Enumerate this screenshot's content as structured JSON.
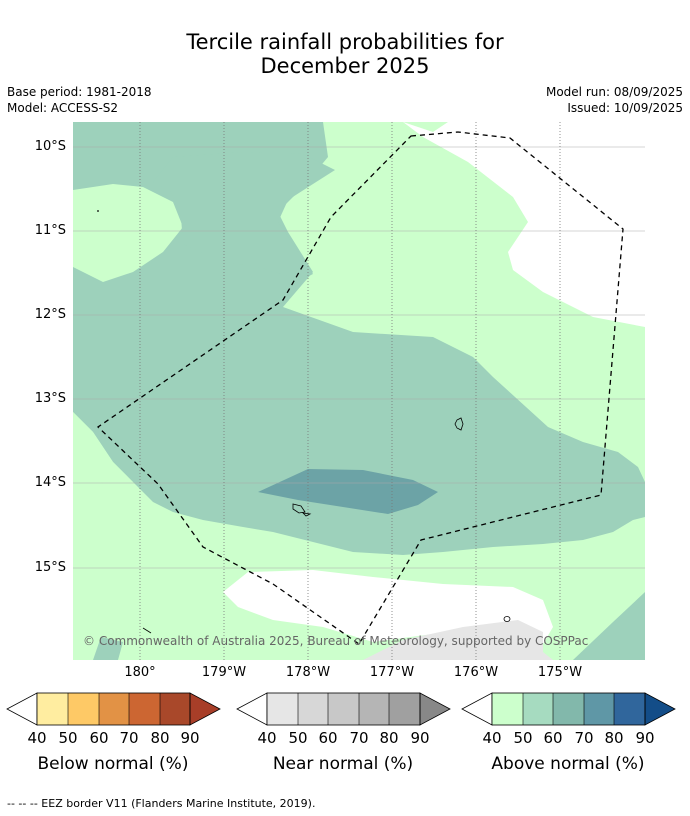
{
  "title_line1": "Tercile rainfall probabilities for",
  "title_line2": "December 2025",
  "meta": {
    "base_period": "Base period: 1981-2018",
    "model": "Model: ACCESS-S2",
    "model_run": "Model run: 08/09/2025",
    "issued": "Issued: 10/09/2025"
  },
  "map": {
    "lat_labels": [
      "10°S",
      "11°S",
      "12°S",
      "13°S",
      "14°S",
      "15°S"
    ],
    "lon_labels": [
      "180°",
      "179°W",
      "178°W",
      "177°W",
      "176°W",
      "175°W"
    ],
    "copyright": "© Commonwealth of Australia 2025, Bureau of Meteorology, supported by COSPPac",
    "colors": {
      "above_50": "#ccffcc",
      "above_60": "#9dd1bb",
      "above_70": "#6ca3a6",
      "near_50": "#e6e6e6",
      "ocean_white": "#ffffff"
    }
  },
  "legends": [
    {
      "title": "Below normal (%)",
      "ticks": [
        "40",
        "50",
        "60",
        "70",
        "80",
        "90"
      ],
      "colors": [
        "#ffeda0",
        "#fec966",
        "#e29245",
        "#cc6632",
        "#a9482a",
        "#a9482a"
      ]
    },
    {
      "title": "Near normal (%)",
      "ticks": [
        "40",
        "50",
        "60",
        "70",
        "80",
        "90"
      ],
      "colors": [
        "#e6e6e6",
        "#d7d7d7",
        "#c8c8c8",
        "#b5b5b5",
        "#a0a0a0",
        "#888888"
      ]
    },
    {
      "title": "Above normal (%)",
      "ticks": [
        "40",
        "50",
        "60",
        "70",
        "80",
        "90"
      ],
      "colors": [
        "#ccffcc",
        "#a6dbc0",
        "#82b8ab",
        "#5f97a6",
        "#30669c",
        "#134d88"
      ]
    }
  ],
  "footnote": "--  --  -- EEZ border V11 (Flanders Marine Institute, 2019)."
}
